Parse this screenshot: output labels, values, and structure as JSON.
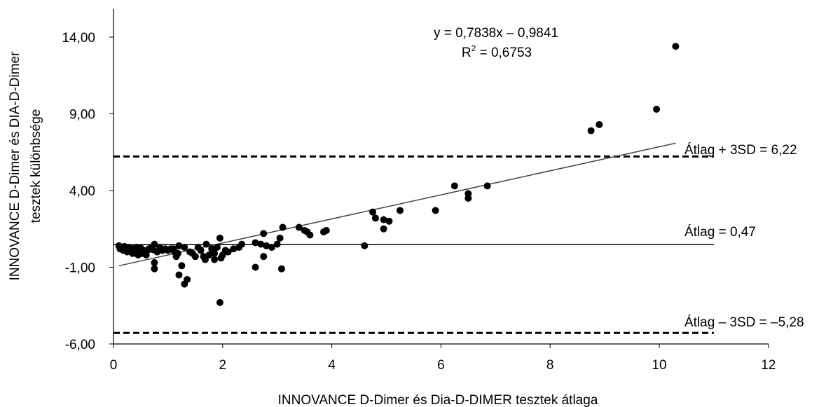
{
  "chart_data": {
    "type": "scatter",
    "xlabel": "INNOVANCE D-Dimer és Dia-D-DIMER tesztek átlaga",
    "ylabel_lines": [
      "INNOVANCE D-Dimer és DIA-D-Dimer",
      "tesztek különbsége"
    ],
    "xlim": [
      0,
      12
    ],
    "ylim": [
      -6,
      16
    ],
    "x_ticks": [
      "0",
      "2",
      "4",
      "6",
      "8",
      "10",
      "12"
    ],
    "x_tick_values": [
      0,
      2,
      4,
      6,
      8,
      10,
      12
    ],
    "y_ticks": [
      "-6,00",
      "-1,00",
      "4,00",
      "9,00",
      "14,00"
    ],
    "y_tick_values": [
      -6,
      -1,
      4,
      9,
      14
    ],
    "regression": {
      "equation": "y = 0,7838x – 0,9841",
      "r2_label": "R",
      "r2_sup": "2",
      "r2_value": " = 0,6753",
      "slope": 0.7838,
      "intercept": -0.9841,
      "x_range": [
        0.1,
        10.3
      ]
    },
    "reference_lines": [
      {
        "label": "Átlag + 3SD = 6,22",
        "value": 6.22,
        "style": "dashed"
      },
      {
        "label": "Átlag = 0,47",
        "value": 0.47,
        "style": "solid"
      },
      {
        "label": "Átlag – 3SD = –5,28",
        "value": -5.28,
        "style": "dashed"
      }
    ],
    "reference_x_range": [
      0,
      11
    ],
    "points": [
      [
        0.1,
        0.4
      ],
      [
        0.12,
        0.2
      ],
      [
        0.15,
        0.3
      ],
      [
        0.18,
        0.1
      ],
      [
        0.2,
        0.35
      ],
      [
        0.22,
        0.2
      ],
      [
        0.25,
        0.0
      ],
      [
        0.28,
        0.3
      ],
      [
        0.3,
        0.1
      ],
      [
        0.32,
        0.25
      ],
      [
        0.35,
        -0.1
      ],
      [
        0.38,
        0.2
      ],
      [
        0.4,
        0.0
      ],
      [
        0.42,
        0.3
      ],
      [
        0.45,
        -0.2
      ],
      [
        0.48,
        0.1
      ],
      [
        0.5,
        0.25
      ],
      [
        0.52,
        -0.1
      ],
      [
        0.55,
        0.1
      ],
      [
        0.58,
        0.0
      ],
      [
        0.6,
        -0.2
      ],
      [
        0.62,
        0.1
      ],
      [
        0.65,
        0.2
      ],
      [
        0.7,
        0.3
      ],
      [
        0.72,
        0.15
      ],
      [
        0.75,
        0.5
      ],
      [
        0.75,
        -0.7
      ],
      [
        0.75,
        -1.1
      ],
      [
        0.8,
        0.0
      ],
      [
        0.85,
        0.3
      ],
      [
        0.9,
        0.1
      ],
      [
        0.95,
        0.2
      ],
      [
        1.0,
        0.1
      ],
      [
        1.05,
        0.2
      ],
      [
        1.1,
        0.2
      ],
      [
        1.12,
        0.0
      ],
      [
        1.15,
        -0.3
      ],
      [
        1.18,
        -0.1
      ],
      [
        1.2,
        0.4
      ],
      [
        1.2,
        -1.5
      ],
      [
        1.25,
        -0.9
      ],
      [
        1.3,
        0.3
      ],
      [
        1.3,
        -2.1
      ],
      [
        1.35,
        -1.8
      ],
      [
        1.4,
        0.0
      ],
      [
        1.45,
        -0.1
      ],
      [
        1.5,
        -0.3
      ],
      [
        1.55,
        0.3
      ],
      [
        1.6,
        0.1
      ],
      [
        1.65,
        -0.3
      ],
      [
        1.68,
        -0.5
      ],
      [
        1.7,
        0.5
      ],
      [
        1.75,
        -0.2
      ],
      [
        1.8,
        0.2
      ],
      [
        1.85,
        -0.1
      ],
      [
        1.85,
        -0.5
      ],
      [
        1.9,
        0.3
      ],
      [
        1.95,
        0.9
      ],
      [
        1.97,
        -0.4
      ],
      [
        2.0,
        -0.2
      ],
      [
        1.95,
        -3.3
      ],
      [
        2.05,
        0.1
      ],
      [
        2.1,
        0.0
      ],
      [
        2.2,
        0.2
      ],
      [
        2.3,
        0.3
      ],
      [
        2.35,
        0.5
      ],
      [
        2.6,
        0.6
      ],
      [
        2.6,
        -1.0
      ],
      [
        2.7,
        0.5
      ],
      [
        2.75,
        -0.3
      ],
      [
        2.75,
        1.2
      ],
      [
        2.8,
        0.4
      ],
      [
        2.9,
        0.3
      ],
      [
        3.0,
        0.5
      ],
      [
        3.05,
        0.9
      ],
      [
        3.1,
        1.6
      ],
      [
        3.08,
        -1.1
      ],
      [
        3.4,
        1.6
      ],
      [
        3.5,
        1.4
      ],
      [
        3.55,
        1.3
      ],
      [
        3.6,
        1.1
      ],
      [
        3.85,
        1.3
      ],
      [
        3.9,
        1.4
      ],
      [
        4.6,
        0.4
      ],
      [
        4.75,
        2.6
      ],
      [
        4.8,
        2.2
      ],
      [
        4.95,
        2.1
      ],
      [
        4.95,
        1.5
      ],
      [
        5.05,
        2.0
      ],
      [
        5.25,
        2.7
      ],
      [
        5.9,
        2.7
      ],
      [
        6.25,
        4.3
      ],
      [
        6.5,
        3.8
      ],
      [
        6.5,
        3.5
      ],
      [
        6.85,
        4.3
      ],
      [
        8.75,
        7.9
      ],
      [
        8.9,
        8.3
      ],
      [
        9.95,
        9.3
      ],
      [
        10.3,
        13.4
      ]
    ]
  }
}
